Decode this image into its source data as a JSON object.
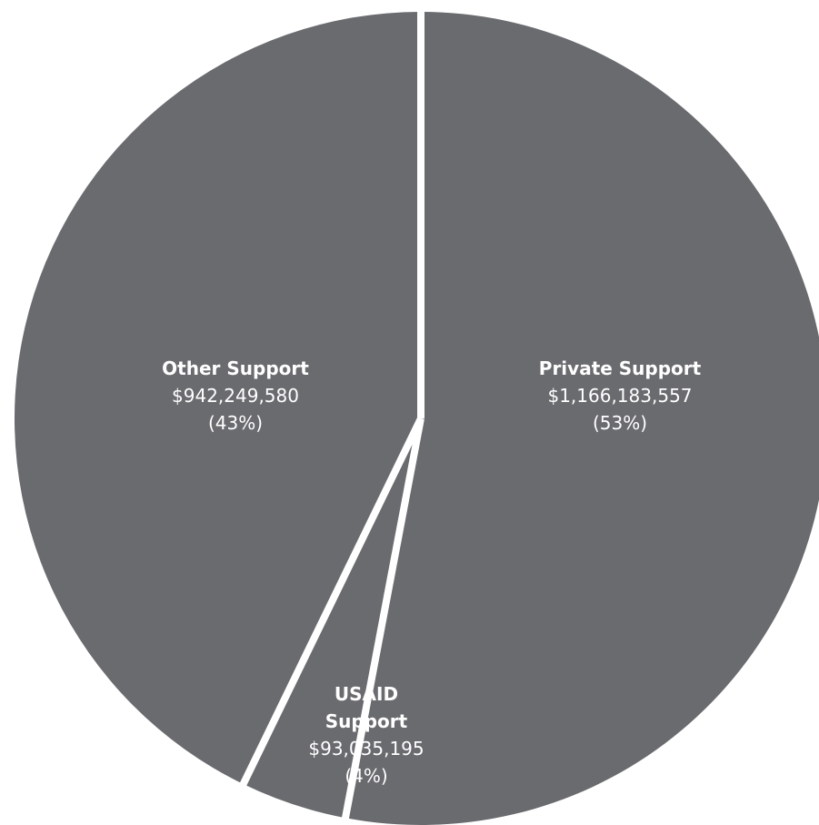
{
  "chart_data": {
    "type": "pie",
    "title": "",
    "slice_color": "#6a6b6f",
    "separator_color": "#ffffff",
    "background_color": "#ffffff",
    "start_angle_deg": 0,
    "direction": "clockwise",
    "slices": [
      {
        "name_lines": [
          "Private Support"
        ],
        "value": 1166183557,
        "value_label": "$1,166,183,557",
        "percent": 53,
        "percent_label": "(53%)"
      },
      {
        "name_lines": [
          "USAID",
          "Support"
        ],
        "value": 93035195,
        "value_label": "$93,035,195",
        "percent": 4,
        "percent_label": "(4%)"
      },
      {
        "name_lines": [
          "Other Support"
        ],
        "value": 942249580,
        "value_label": "$942,249,580",
        "percent": 43,
        "percent_label": "(43%)"
      }
    ]
  }
}
